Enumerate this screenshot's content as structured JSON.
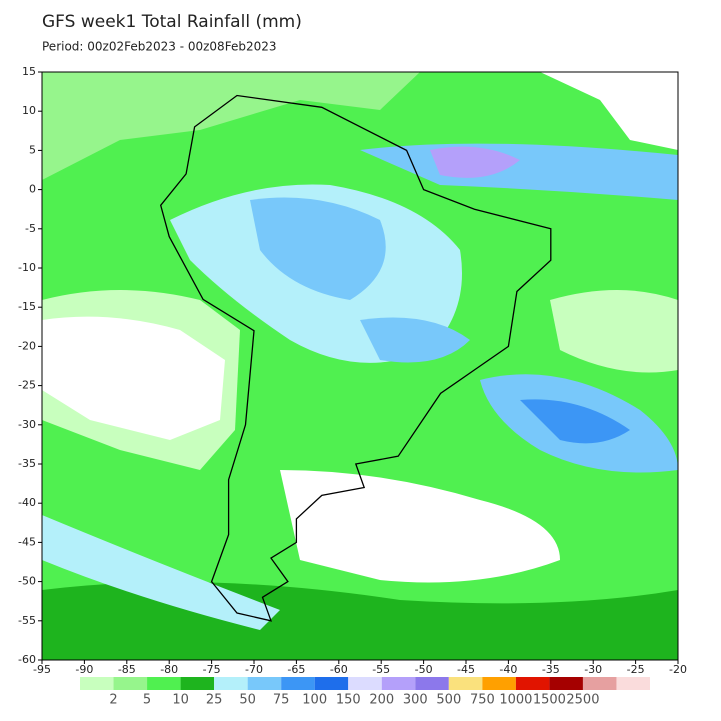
{
  "header": {
    "title": "GFS week1 Total Rainfall (mm)",
    "period": "Period: 00z02Feb2023 - 00z08Feb2023"
  },
  "map": {
    "xlim": [
      -95,
      -20
    ],
    "ylim": [
      -60,
      15
    ],
    "xticks": [
      -95,
      -90,
      -85,
      -80,
      -75,
      -70,
      -65,
      -60,
      -55,
      -50,
      -45,
      -40,
      -35,
      -30,
      -25,
      -20
    ],
    "yticks": [
      15,
      10,
      5,
      0,
      -5,
      -10,
      -15,
      -20,
      -25,
      -30,
      -35,
      -40,
      -45,
      -50,
      -55,
      -60
    ]
  },
  "colorbar": {
    "levels": [
      2,
      5,
      10,
      25,
      50,
      75,
      100,
      150,
      200,
      300,
      500,
      750,
      1000,
      1500,
      2500
    ],
    "colors": [
      "#c8ffbe",
      "#96f58c",
      "#50f050",
      "#1eb41e",
      "#b4f0fa",
      "#78c8fa",
      "#3c96f5",
      "#1e6eeb",
      "#dcdcff",
      "#b4a0fa",
      "#8c78eb",
      "#fae17d",
      "#ffa000",
      "#e11400",
      "#a50000",
      "#e6a0a0",
      "#fadcdc"
    ]
  }
}
